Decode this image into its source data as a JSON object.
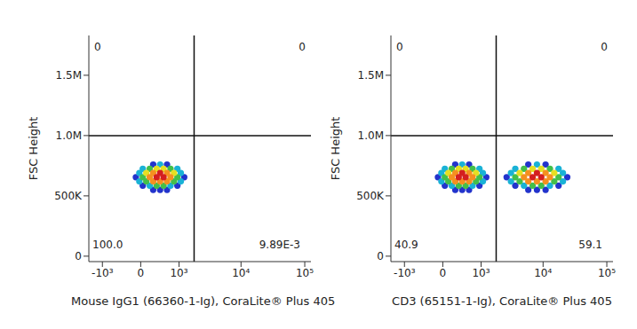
{
  "chart_data": [
    {
      "type": "scatter",
      "x_label": "Mouse IgG1 (66360-1-Ig), CoraLite® Plus 405",
      "y_label": "FSC Height",
      "xlim": [
        -1700,
        125000
      ],
      "ylim": [
        -45000,
        1830000
      ],
      "xticks": [
        {
          "value": -1000,
          "label": "-10³"
        },
        0,
        {
          "value": 1000,
          "label": "10³"
        },
        {
          "value": 10000,
          "label": "10⁴"
        },
        {
          "value": 100000,
          "label": "10⁵"
        }
      ],
      "yticks": [
        0,
        {
          "value": 500000,
          "label": "500K"
        },
        {
          "value": 1000000,
          "label": "1.0M"
        },
        {
          "value": 1500000,
          "label": "1.5M"
        }
      ],
      "gates": {
        "x": 1800,
        "y": 1000000
      },
      "quadrants": {
        "upper_left": {
          "value": 0,
          "label": "0"
        },
        "upper_right": {
          "value": 0,
          "label": "0"
        },
        "lower_left": {
          "value": 100.0,
          "label": "100.0"
        },
        "lower_right": {
          "value": 0.00989,
          "label": "9.89E-3"
        }
      },
      "x": [
        249,
        406,
        588,
        40,
        934,
        -94,
        1231,
        249,
        588,
        177,
        693,
        -27,
        1075,
        -27,
        1075,
        40,
        934,
        406,
        325,
        493,
        108,
        808,
        40,
        934,
        177,
        693,
        108,
        808,
        325,
        493,
        249,
        406,
        588,
        177,
        693,
        249,
        588,
        325,
        493,
        406
      ],
      "values": [
        550000,
        550000,
        550000,
        585000,
        585000,
        655000,
        655000,
        760000,
        760000,
        585000,
        585000,
        620000,
        620000,
        690000,
        690000,
        725000,
        725000,
        760000,
        585000,
        585000,
        620000,
        620000,
        655000,
        655000,
        725000,
        725000,
        690000,
        690000,
        725000,
        725000,
        620000,
        620000,
        620000,
        655000,
        655000,
        690000,
        690000,
        655000,
        655000,
        690000
      ],
      "colors": [
        "#2233cc",
        "#2233cc",
        "#2233cc",
        "#2233cc",
        "#2233cc",
        "#2233cc",
        "#2233cc",
        "#2233cc",
        "#2233cc",
        "#19b2d6",
        "#19b2d6",
        "#19b2d6",
        "#19b2d6",
        "#19b2d6",
        "#19b2d6",
        "#19b2d6",
        "#19b2d6",
        "#19b2d6",
        "#43bf4a",
        "#43bf4a",
        "#43bf4a",
        "#43bf4a",
        "#43bf4a",
        "#43bf4a",
        "#43bf4a",
        "#43bf4a",
        "#e6df22",
        "#e6df22",
        "#e6df22",
        "#e6df22",
        "#f5901f",
        "#f5901f",
        "#f5901f",
        "#f5901f",
        "#f5901f",
        "#f5901f",
        "#f5901f",
        "#d41f1f",
        "#d41f1f",
        "#d41f1f"
      ]
    },
    {
      "type": "scatter",
      "x_label": "CD3 (65151-1-Ig), CoraLite® Plus 405",
      "y_label": "FSC Height",
      "xlim": [
        -1700,
        125000
      ],
      "ylim": [
        -45000,
        1830000
      ],
      "xticks": [
        {
          "value": -1000,
          "label": "-10³"
        },
        0,
        {
          "value": 1000,
          "label": "10³"
        },
        {
          "value": 10000,
          "label": "10⁴"
        },
        {
          "value": 100000,
          "label": "10⁵"
        }
      ],
      "yticks": [
        0,
        {
          "value": 500000,
          "label": "500K"
        },
        {
          "value": 1000000,
          "label": "1.0M"
        },
        {
          "value": 1500000,
          "label": "1.5M"
        }
      ],
      "gates": {
        "x": 1800,
        "y": 1000000
      },
      "quadrants": {
        "upper_left": {
          "value": 0,
          "label": "0"
        },
        "upper_right": {
          "value": 0,
          "label": "0"
        },
        "lower_left": {
          "value": 40.9,
          "label": "40.9"
        },
        "lower_right": {
          "value": 59.1,
          "label": "59.1"
        }
      },
      "x": [
        249,
        406,
        588,
        40,
        934,
        -94,
        1231,
        249,
        588,
        177,
        693,
        -27,
        1075,
        -27,
        1075,
        40,
        934,
        406,
        325,
        493,
        108,
        808,
        40,
        934,
        177,
        693,
        108,
        808,
        325,
        493,
        249,
        406,
        588,
        177,
        693,
        249,
        588,
        325,
        493,
        406,
        5853,
        8009,
        10951,
        3649,
        17500,
        2657,
        23931,
        5853,
        10951,
        5002,
        12803,
        3115,
        20469,
        3115,
        20469,
        3649,
        17500,
        8009,
        6848,
        9363,
        4280,
        14969,
        3649,
        17500,
        5002,
        12803,
        4280,
        14969,
        6848,
        9363,
        5853,
        8009,
        10951,
        5002,
        12803,
        5853,
        10951,
        6848,
        9363,
        8009
      ],
      "values": [
        550000,
        550000,
        550000,
        585000,
        585000,
        655000,
        655000,
        760000,
        760000,
        585000,
        585000,
        620000,
        620000,
        690000,
        690000,
        725000,
        725000,
        760000,
        585000,
        585000,
        620000,
        620000,
        655000,
        655000,
        725000,
        725000,
        690000,
        690000,
        725000,
        725000,
        620000,
        620000,
        620000,
        655000,
        655000,
        690000,
        690000,
        655000,
        655000,
        690000,
        550000,
        550000,
        550000,
        585000,
        585000,
        655000,
        655000,
        760000,
        760000,
        585000,
        585000,
        620000,
        620000,
        690000,
        690000,
        725000,
        725000,
        760000,
        585000,
        585000,
        620000,
        620000,
        655000,
        655000,
        725000,
        725000,
        690000,
        690000,
        725000,
        725000,
        620000,
        620000,
        620000,
        655000,
        655000,
        690000,
        690000,
        655000,
        655000,
        690000
      ],
      "colors": [
        "#2233cc",
        "#2233cc",
        "#2233cc",
        "#2233cc",
        "#2233cc",
        "#2233cc",
        "#2233cc",
        "#2233cc",
        "#2233cc",
        "#19b2d6",
        "#19b2d6",
        "#19b2d6",
        "#19b2d6",
        "#19b2d6",
        "#19b2d6",
        "#19b2d6",
        "#19b2d6",
        "#19b2d6",
        "#43bf4a",
        "#43bf4a",
        "#43bf4a",
        "#43bf4a",
        "#43bf4a",
        "#43bf4a",
        "#43bf4a",
        "#43bf4a",
        "#e6df22",
        "#e6df22",
        "#e6df22",
        "#e6df22",
        "#f5901f",
        "#f5901f",
        "#f5901f",
        "#f5901f",
        "#f5901f",
        "#f5901f",
        "#f5901f",
        "#d41f1f",
        "#d41f1f",
        "#d41f1f",
        "#2233cc",
        "#2233cc",
        "#2233cc",
        "#2233cc",
        "#2233cc",
        "#2233cc",
        "#2233cc",
        "#2233cc",
        "#2233cc",
        "#19b2d6",
        "#19b2d6",
        "#19b2d6",
        "#19b2d6",
        "#19b2d6",
        "#19b2d6",
        "#19b2d6",
        "#19b2d6",
        "#19b2d6",
        "#43bf4a",
        "#43bf4a",
        "#43bf4a",
        "#43bf4a",
        "#43bf4a",
        "#43bf4a",
        "#43bf4a",
        "#43bf4a",
        "#e6df22",
        "#e6df22",
        "#e6df22",
        "#e6df22",
        "#f5901f",
        "#f5901f",
        "#f5901f",
        "#f5901f",
        "#f5901f",
        "#f5901f",
        "#f5901f",
        "#d41f1f",
        "#d41f1f",
        "#d41f1f"
      ]
    }
  ]
}
